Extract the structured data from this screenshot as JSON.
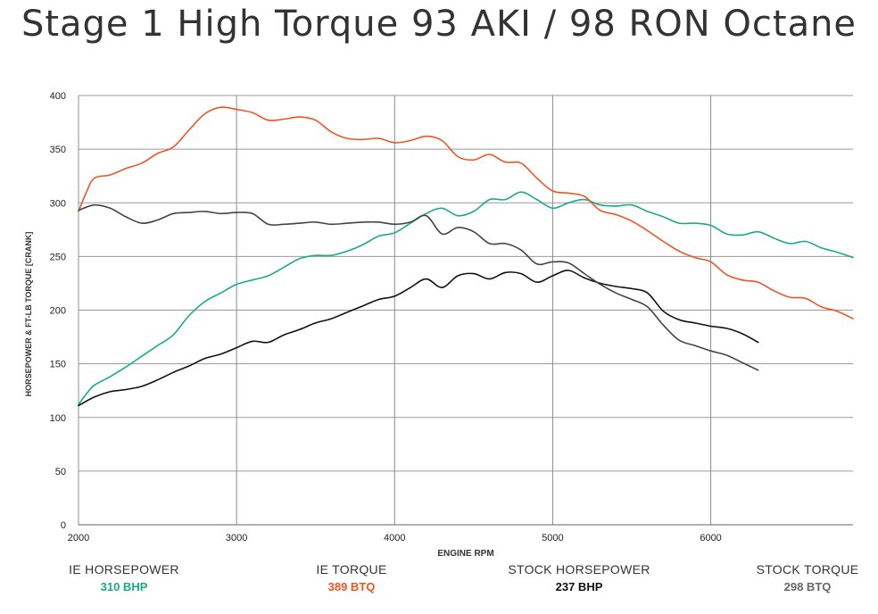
{
  "chart_data": {
    "type": "line",
    "title": "Stage 1 High Torque 93 AKI / 98 RON Octane",
    "xlabel": "ENGINE RPM",
    "ylabel": "HORSEPOWER & FT-LB TORQUE [CRANK]",
    "xlim": [
      2000,
      6900
    ],
    "ylim": [
      0,
      400
    ],
    "xticks": [
      2000,
      3000,
      4000,
      5000,
      6000
    ],
    "yticks": [
      0,
      50,
      100,
      150,
      200,
      250,
      300,
      350,
      400
    ],
    "grid": true,
    "legend_position": "bottom",
    "series": [
      {
        "name": "IE HORSEPOWER",
        "summary": "310 BHP",
        "color": "#1aaa86",
        "points": [
          [
            2000,
            112
          ],
          [
            2050,
            122
          ],
          [
            2100,
            130
          ],
          [
            2200,
            138
          ],
          [
            2300,
            147
          ],
          [
            2400,
            157
          ],
          [
            2500,
            167
          ],
          [
            2600,
            177
          ],
          [
            2700,
            195
          ],
          [
            2800,
            208
          ],
          [
            2900,
            216
          ],
          [
            3000,
            224
          ],
          [
            3100,
            228
          ],
          [
            3200,
            232
          ],
          [
            3300,
            240
          ],
          [
            3400,
            248
          ],
          [
            3500,
            251
          ],
          [
            3600,
            251
          ],
          [
            3700,
            255
          ],
          [
            3800,
            261
          ],
          [
            3900,
            269
          ],
          [
            4000,
            272
          ],
          [
            4100,
            281
          ],
          [
            4200,
            290
          ],
          [
            4300,
            295
          ],
          [
            4400,
            288
          ],
          [
            4500,
            292
          ],
          [
            4600,
            303
          ],
          [
            4700,
            303
          ],
          [
            4800,
            310
          ],
          [
            4900,
            303
          ],
          [
            5000,
            295
          ],
          [
            5100,
            300
          ],
          [
            5200,
            303
          ],
          [
            5300,
            298
          ],
          [
            5400,
            297
          ],
          [
            5500,
            298
          ],
          [
            5600,
            292
          ],
          [
            5700,
            287
          ],
          [
            5800,
            281
          ],
          [
            5900,
            281
          ],
          [
            6000,
            279
          ],
          [
            6100,
            271
          ],
          [
            6200,
            270
          ],
          [
            6300,
            273
          ],
          [
            6400,
            267
          ],
          [
            6500,
            262
          ],
          [
            6600,
            264
          ],
          [
            6700,
            258
          ],
          [
            6800,
            254
          ],
          [
            6900,
            249
          ]
        ]
      },
      {
        "name": "IE TORQUE",
        "summary": "389 BTQ",
        "color": "#ee5522",
        "points": [
          [
            2000,
            292
          ],
          [
            2050,
            310
          ],
          [
            2100,
            323
          ],
          [
            2200,
            326
          ],
          [
            2300,
            332
          ],
          [
            2400,
            337
          ],
          [
            2500,
            346
          ],
          [
            2600,
            352
          ],
          [
            2700,
            368
          ],
          [
            2800,
            383
          ],
          [
            2900,
            389
          ],
          [
            3000,
            387
          ],
          [
            3100,
            384
          ],
          [
            3200,
            377
          ],
          [
            3300,
            378
          ],
          [
            3400,
            380
          ],
          [
            3500,
            377
          ],
          [
            3600,
            366
          ],
          [
            3700,
            360
          ],
          [
            3800,
            359
          ],
          [
            3900,
            360
          ],
          [
            4000,
            356
          ],
          [
            4100,
            358
          ],
          [
            4200,
            362
          ],
          [
            4300,
            358
          ],
          [
            4400,
            343
          ],
          [
            4500,
            340
          ],
          [
            4600,
            345
          ],
          [
            4700,
            338
          ],
          [
            4800,
            337
          ],
          [
            4900,
            323
          ],
          [
            5000,
            311
          ],
          [
            5100,
            309
          ],
          [
            5200,
            306
          ],
          [
            5300,
            293
          ],
          [
            5400,
            289
          ],
          [
            5500,
            283
          ],
          [
            5600,
            274
          ],
          [
            5700,
            264
          ],
          [
            5800,
            255
          ],
          [
            5900,
            249
          ],
          [
            6000,
            245
          ],
          [
            6100,
            233
          ],
          [
            6200,
            228
          ],
          [
            6300,
            226
          ],
          [
            6400,
            218
          ],
          [
            6500,
            212
          ],
          [
            6600,
            211
          ],
          [
            6700,
            203
          ],
          [
            6800,
            199
          ],
          [
            6900,
            192
          ]
        ]
      },
      {
        "name": "STOCK HORSEPOWER",
        "summary": "237 BHP",
        "color": "#111111",
        "points": [
          [
            2000,
            111
          ],
          [
            2100,
            119
          ],
          [
            2200,
            124
          ],
          [
            2300,
            126
          ],
          [
            2400,
            129
          ],
          [
            2500,
            135
          ],
          [
            2600,
            142
          ],
          [
            2700,
            148
          ],
          [
            2800,
            155
          ],
          [
            2900,
            159
          ],
          [
            3000,
            165
          ],
          [
            3100,
            171
          ],
          [
            3200,
            170
          ],
          [
            3300,
            177
          ],
          [
            3400,
            182
          ],
          [
            3500,
            188
          ],
          [
            3600,
            192
          ],
          [
            3700,
            198
          ],
          [
            3800,
            204
          ],
          [
            3900,
            210
          ],
          [
            4000,
            213
          ],
          [
            4100,
            221
          ],
          [
            4200,
            229
          ],
          [
            4300,
            221
          ],
          [
            4400,
            232
          ],
          [
            4500,
            234
          ],
          [
            4600,
            229
          ],
          [
            4700,
            235
          ],
          [
            4800,
            234
          ],
          [
            4900,
            226
          ],
          [
            5000,
            232
          ],
          [
            5100,
            237
          ],
          [
            5200,
            230
          ],
          [
            5300,
            225
          ],
          [
            5400,
            222
          ],
          [
            5500,
            220
          ],
          [
            5600,
            216
          ],
          [
            5700,
            199
          ],
          [
            5800,
            191
          ],
          [
            5900,
            188
          ],
          [
            6000,
            185
          ],
          [
            6100,
            183
          ],
          [
            6200,
            178
          ],
          [
            6300,
            170
          ]
        ]
      },
      {
        "name": "STOCK TORQUE",
        "summary": "298 BTQ",
        "color": "#444444",
        "points": [
          [
            2000,
            293
          ],
          [
            2100,
            298
          ],
          [
            2200,
            295
          ],
          [
            2300,
            287
          ],
          [
            2400,
            281
          ],
          [
            2500,
            284
          ],
          [
            2600,
            290
          ],
          [
            2700,
            291
          ],
          [
            2800,
            292
          ],
          [
            2900,
            290
          ],
          [
            3000,
            291
          ],
          [
            3100,
            290
          ],
          [
            3200,
            280
          ],
          [
            3300,
            280
          ],
          [
            3400,
            281
          ],
          [
            3500,
            282
          ],
          [
            3600,
            280
          ],
          [
            3700,
            281
          ],
          [
            3800,
            282
          ],
          [
            3900,
            282
          ],
          [
            4000,
            280
          ],
          [
            4100,
            282
          ],
          [
            4200,
            288
          ],
          [
            4300,
            271
          ],
          [
            4400,
            277
          ],
          [
            4500,
            273
          ],
          [
            4600,
            262
          ],
          [
            4700,
            262
          ],
          [
            4800,
            256
          ],
          [
            4900,
            243
          ],
          [
            5000,
            245
          ],
          [
            5100,
            244
          ],
          [
            5200,
            234
          ],
          [
            5300,
            224
          ],
          [
            5400,
            216
          ],
          [
            5500,
            210
          ],
          [
            5600,
            203
          ],
          [
            5700,
            186
          ],
          [
            5800,
            172
          ],
          [
            5900,
            167
          ],
          [
            6000,
            162
          ],
          [
            6100,
            158
          ],
          [
            6200,
            151
          ],
          [
            6300,
            144
          ]
        ]
      }
    ]
  }
}
